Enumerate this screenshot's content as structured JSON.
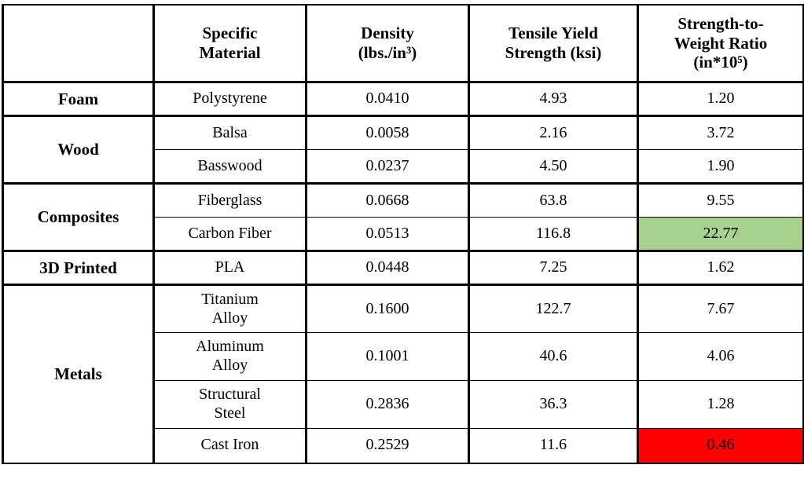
{
  "table": {
    "header": {
      "category": "",
      "material": "Specific\nMaterial",
      "density": "Density\n(lbs./in³)",
      "tensile": "Tensile Yield\nStrength (ksi)",
      "ratio": "Strength-to-\nWeight Ratio\n(in*10⁵)"
    },
    "groups": [
      {
        "category": "Foam",
        "rows": [
          {
            "material": "Polystyrene",
            "density": "0.0410",
            "tensile": "4.93",
            "ratio": "1.20"
          }
        ]
      },
      {
        "category": "Wood",
        "rows": [
          {
            "material": "Balsa",
            "density": "0.0058",
            "tensile": "2.16",
            "ratio": "3.72"
          },
          {
            "material": "Basswood",
            "density": "0.0237",
            "tensile": "4.50",
            "ratio": "1.90"
          }
        ]
      },
      {
        "category": "Composites",
        "rows": [
          {
            "material": "Fiberglass",
            "density": "0.0668",
            "tensile": "63.8",
            "ratio": "9.55"
          },
          {
            "material": "Carbon Fiber",
            "density": "0.0513",
            "tensile": "116.8",
            "ratio": "22.77",
            "highlight": "green"
          }
        ]
      },
      {
        "category": "3D Printed",
        "rows": [
          {
            "material": "PLA",
            "density": "0.0448",
            "tensile": "7.25",
            "ratio": "1.62"
          }
        ]
      },
      {
        "category": "Metals",
        "rows": [
          {
            "material": "Titanium\nAlloy",
            "density": "0.1600",
            "tensile": "122.7",
            "ratio": "7.67"
          },
          {
            "material": "Aluminum\nAlloy",
            "density": "0.1001",
            "tensile": "40.6",
            "ratio": "4.06"
          },
          {
            "material": "Structural\nSteel",
            "density": "0.2836",
            "tensile": "36.3",
            "ratio": "1.28"
          },
          {
            "material": "Cast Iron",
            "density": "0.2529",
            "tensile": "11.6",
            "ratio": "0.46",
            "highlight": "red"
          }
        ]
      }
    ]
  },
  "colors": {
    "highlight_green": "#A9D18E",
    "highlight_red": "#FF0000",
    "border": "#000000",
    "text": "#000000"
  },
  "chart_data": {
    "type": "table",
    "columns": [
      "",
      "Specific Material",
      "Density (lbs./in³)",
      "Tensile Yield Strength (ksi)",
      "Strength-to-Weight Ratio (in*10⁵)"
    ],
    "rows": [
      [
        "Foam",
        "Polystyrene",
        0.041,
        4.93,
        1.2
      ],
      [
        "Wood",
        "Balsa",
        0.0058,
        2.16,
        3.72
      ],
      [
        "Wood",
        "Basswood",
        0.0237,
        4.5,
        1.9
      ],
      [
        "Composites",
        "Fiberglass",
        0.0668,
        63.8,
        9.55
      ],
      [
        "Composites",
        "Carbon Fiber",
        0.0513,
        116.8,
        22.77
      ],
      [
        "3D Printed",
        "PLA",
        0.0448,
        7.25,
        1.62
      ],
      [
        "Metals",
        "Titanium Alloy",
        0.16,
        122.7,
        7.67
      ],
      [
        "Metals",
        "Aluminum Alloy",
        0.1001,
        40.6,
        4.06
      ],
      [
        "Metals",
        "Structural Steel",
        0.2836,
        36.3,
        1.28
      ],
      [
        "Metals",
        "Cast Iron",
        0.2529,
        11.6,
        0.46
      ]
    ],
    "highlighted_cells": [
      {
        "row": "Carbon Fiber",
        "column": "Strength-to-Weight Ratio (in*10⁵)",
        "value": 22.77,
        "color": "#A9D18E"
      },
      {
        "row": "Cast Iron",
        "column": "Strength-to-Weight Ratio (in*10⁵)",
        "value": 0.46,
        "color": "#FF0000"
      }
    ]
  }
}
